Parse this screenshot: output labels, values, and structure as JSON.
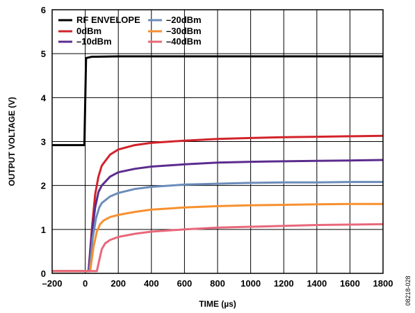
{
  "figure_id": "08218-028",
  "chart_data": {
    "type": "line",
    "xlabel": "TIME (µs)",
    "ylabel": "OUTPUT VOLTAGE (V)",
    "xlim": [
      -200,
      1800
    ],
    "ylim": [
      0,
      6
    ],
    "xticks": [
      -200,
      0,
      200,
      400,
      600,
      800,
      1000,
      1200,
      1400,
      1600,
      1800
    ],
    "yticks": [
      0,
      1,
      2,
      3,
      4,
      5,
      6
    ],
    "xtick_labels": [
      "–200",
      "0",
      "200",
      "400",
      "600",
      "800",
      "1000",
      "1200",
      "1400",
      "1600",
      "1800"
    ],
    "ytick_labels": [
      "0",
      "1",
      "2",
      "3",
      "4",
      "5",
      "6"
    ],
    "grid": true,
    "legend_position": "top-left",
    "series": [
      {
        "name": "RF ENVELOPE",
        "color": "#000000",
        "x": [
          -200,
          -5,
          5,
          40,
          200,
          600,
          1000,
          1400,
          1800
        ],
        "y": [
          2.92,
          2.92,
          4.9,
          4.93,
          4.94,
          4.94,
          4.94,
          4.94,
          4.94
        ]
      },
      {
        "name": "0dBm",
        "color": "#d2232a",
        "x": [
          -200,
          20,
          40,
          60,
          80,
          100,
          150,
          200,
          300,
          400,
          600,
          800,
          1000,
          1200,
          1400,
          1600,
          1800
        ],
        "y": [
          0.05,
          0.05,
          1.0,
          1.8,
          2.2,
          2.45,
          2.7,
          2.82,
          2.92,
          2.97,
          3.02,
          3.06,
          3.08,
          3.1,
          3.11,
          3.12,
          3.13
        ]
      },
      {
        "name": "–10dBm",
        "color": "#5b2c8e",
        "x": [
          -200,
          20,
          40,
          60,
          80,
          100,
          150,
          200,
          300,
          400,
          600,
          800,
          1000,
          1200,
          1400,
          1600,
          1800
        ],
        "y": [
          0.05,
          0.05,
          0.9,
          1.5,
          1.85,
          2.0,
          2.2,
          2.3,
          2.38,
          2.43,
          2.48,
          2.52,
          2.54,
          2.55,
          2.56,
          2.57,
          2.58
        ]
      },
      {
        "name": "–20dBm",
        "color": "#6b8cba",
        "x": [
          -200,
          25,
          45,
          65,
          85,
          100,
          150,
          200,
          300,
          400,
          600,
          800,
          1000,
          1200,
          1400,
          1600,
          1800
        ],
        "y": [
          0.05,
          0.05,
          0.8,
          1.25,
          1.5,
          1.6,
          1.75,
          1.83,
          1.92,
          1.97,
          2.02,
          2.04,
          2.06,
          2.07,
          2.07,
          2.08,
          2.08
        ]
      },
      {
        "name": "–30dBm",
        "color": "#f7902f",
        "x": [
          -200,
          30,
          50,
          70,
          90,
          110,
          150,
          200,
          300,
          400,
          600,
          800,
          1000,
          1200,
          1400,
          1600,
          1800
        ],
        "y": [
          0.05,
          0.05,
          0.6,
          0.95,
          1.12,
          1.2,
          1.28,
          1.33,
          1.4,
          1.45,
          1.5,
          1.53,
          1.55,
          1.56,
          1.57,
          1.58,
          1.58
        ]
      },
      {
        "name": "–40dBm",
        "color": "#e8687a",
        "x": [
          -200,
          70,
          85,
          100,
          120,
          150,
          200,
          300,
          400,
          600,
          800,
          1000,
          1200,
          1400,
          1600,
          1800
        ],
        "y": [
          0.05,
          0.05,
          0.3,
          0.55,
          0.68,
          0.76,
          0.83,
          0.9,
          0.95,
          1.0,
          1.04,
          1.06,
          1.08,
          1.1,
          1.11,
          1.12
        ]
      }
    ]
  }
}
